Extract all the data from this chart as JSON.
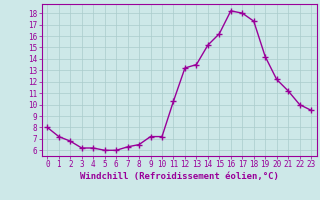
{
  "xlabel": "Windchill (Refroidissement éolien,°C)",
  "x": [
    0,
    1,
    2,
    3,
    4,
    5,
    6,
    7,
    8,
    9,
    10,
    11,
    12,
    13,
    14,
    15,
    16,
    17,
    18,
    19,
    20,
    21,
    22,
    23
  ],
  "y": [
    8.0,
    7.2,
    6.8,
    6.2,
    6.2,
    6.0,
    6.0,
    6.3,
    6.5,
    7.2,
    7.2,
    10.3,
    13.2,
    13.5,
    15.2,
    16.2,
    18.2,
    18.0,
    17.3,
    14.2,
    12.2,
    11.2,
    10.0,
    9.5
  ],
  "line_color": "#990099",
  "marker": "+",
  "marker_size": 4,
  "bg_color": "#cde8e8",
  "grid_color": "#aacccc",
  "ylim": [
    5.5,
    18.8
  ],
  "xlim": [
    -0.5,
    23.5
  ],
  "yticks": [
    6,
    7,
    8,
    9,
    10,
    11,
    12,
    13,
    14,
    15,
    16,
    17,
    18
  ],
  "xticks": [
    0,
    1,
    2,
    3,
    4,
    5,
    6,
    7,
    8,
    9,
    10,
    11,
    12,
    13,
    14,
    15,
    16,
    17,
    18,
    19,
    20,
    21,
    22,
    23
  ],
  "tick_fontsize": 5.5,
  "xlabel_fontsize": 6.5,
  "lw": 1.0
}
